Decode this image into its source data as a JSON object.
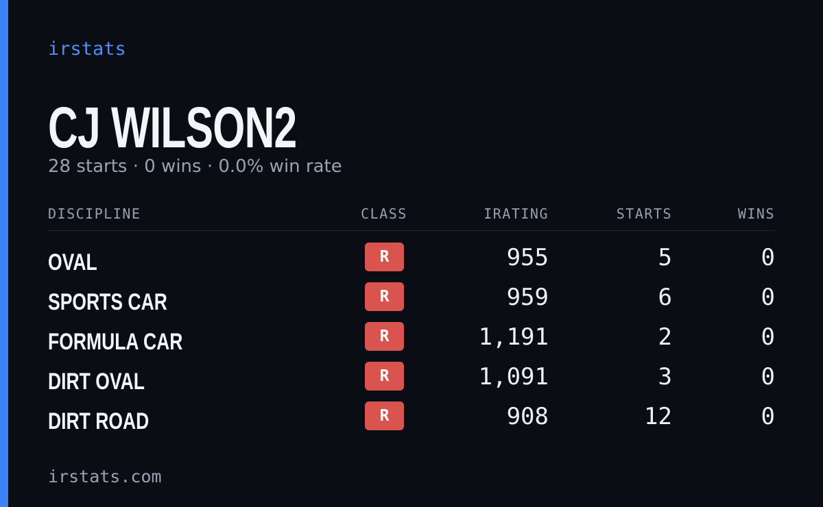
{
  "brand": "irstats",
  "title": "CJ WILSON2",
  "subtitle": "28 starts · 0 wins · 0.0% win rate",
  "table": {
    "headers": [
      "DISCIPLINE",
      "CLASS",
      "IRATING",
      "STARTS",
      "WINS"
    ],
    "rows": [
      [
        "OVAL",
        "R",
        "955",
        "5",
        "0"
      ],
      [
        "SPORTS CAR",
        "R",
        "959",
        "6",
        "0"
      ],
      [
        "FORMULA CAR",
        "R",
        "1,191",
        "2",
        "0"
      ],
      [
        "DIRT OVAL",
        "R",
        "1,091",
        "3",
        "0"
      ],
      [
        "DIRT ROAD",
        "R",
        "908",
        "12",
        "0"
      ]
    ]
  },
  "footer": "irstats.com"
}
